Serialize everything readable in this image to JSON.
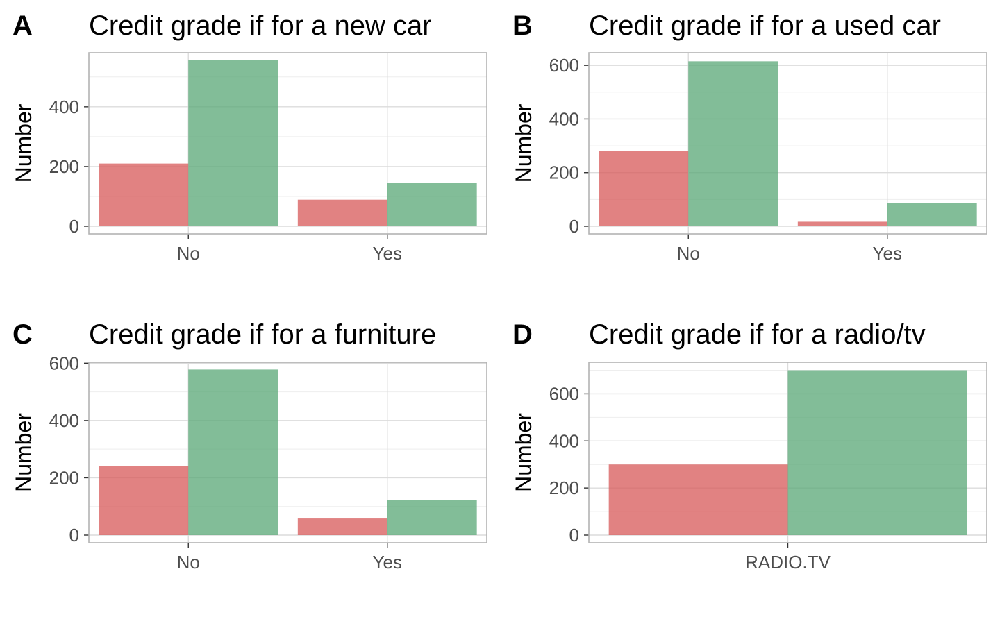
{
  "colors": {
    "series_1": "#d95f5f",
    "series_2": "#5fab7b",
    "grid_major": "#dcdcdc",
    "grid_minor": "#eeeeee",
    "panel_border": "#b3b3b3"
  },
  "chart_data": [
    {
      "type": "bar",
      "panel_label": "A",
      "title": "Credit grade if for a new car",
      "xlabel": "",
      "ylabel": "Number",
      "categories": [
        "No",
        "Yes"
      ],
      "series": [
        {
          "values": [
            210,
            89
          ]
        },
        {
          "values": [
            556,
            145
          ]
        }
      ],
      "ylim": [
        0,
        560
      ],
      "yticks": [
        0,
        200,
        400
      ],
      "grid": true,
      "legend": "none"
    },
    {
      "type": "bar",
      "panel_label": "B",
      "title": "Credit grade if for a used car",
      "xlabel": "",
      "ylabel": "Number",
      "categories": [
        "No",
        "Yes"
      ],
      "series": [
        {
          "values": [
            282,
            17
          ]
        },
        {
          "values": [
            615,
            86
          ]
        }
      ],
      "ylim": [
        0,
        615
      ],
      "yticks": [
        0,
        200,
        400,
        600
      ],
      "grid": true,
      "legend": "none"
    },
    {
      "type": "bar",
      "panel_label": "C",
      "title": "Credit grade if for a furniture",
      "xlabel": "",
      "ylabel": "Number",
      "categories": [
        "No",
        "Yes"
      ],
      "series": [
        {
          "values": [
            240,
            58
          ]
        },
        {
          "values": [
            578,
            122
          ]
        }
      ],
      "ylim": [
        0,
        578
      ],
      "yticks": [
        0,
        200,
        400,
        600
      ],
      "grid": true,
      "legend": "none"
    },
    {
      "type": "bar",
      "panel_label": "D",
      "title": "Credit grade if for a radio/tv",
      "xlabel": "",
      "ylabel": "Number",
      "categories": [
        "RADIO.TV"
      ],
      "series": [
        {
          "values": [
            300
          ]
        },
        {
          "values": [
            700
          ]
        }
      ],
      "ylim": [
        0,
        700
      ],
      "yticks": [
        0,
        200,
        400,
        600
      ],
      "grid": true,
      "legend": "none"
    }
  ]
}
